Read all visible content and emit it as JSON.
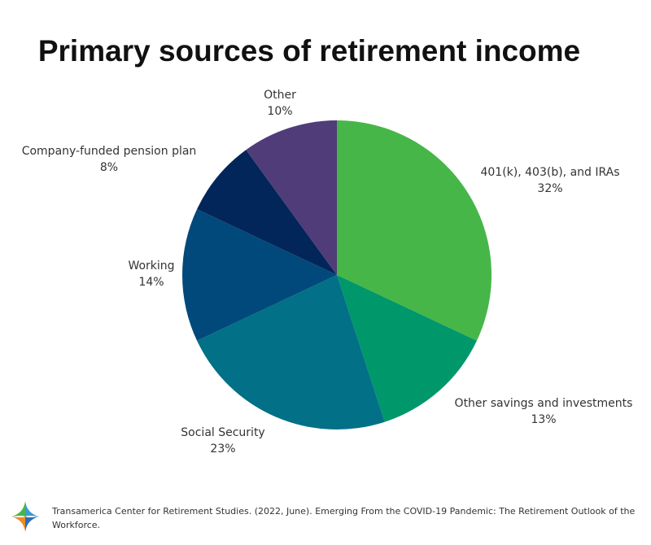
{
  "chart_data": {
    "type": "pie",
    "title": "Primary sources of retirement income",
    "slices": [
      {
        "label": "401(k), 403(b), and IRAs",
        "value": 32,
        "value_text": "32%",
        "color": "#47b648"
      },
      {
        "label": "Other savings and investments",
        "value": 13,
        "value_text": "13%",
        "color": "#00976b"
      },
      {
        "label": "Social Security",
        "value": 23,
        "value_text": "23%",
        "color": "#027087"
      },
      {
        "label": "Working",
        "value": 14,
        "value_text": "14%",
        "color": "#01497a"
      },
      {
        "label": "Company-funded pension plan",
        "value": 8,
        "value_text": "8%",
        "color": "#03265a"
      },
      {
        "label": "Other",
        "value": 10,
        "value_text": "10%",
        "color": "#4f3c79"
      }
    ],
    "start_angle": "12 o'clock",
    "direction": "clockwise",
    "legend": "none"
  },
  "footer": {
    "citation": "Transamerica Center for Retirement Studies. (2022, June). Emerging From the COVID-19 Pandemic: The Retirement Outlook of the Workforce.",
    "logo_icon": "transamerica-star-icon",
    "logo_colors": [
      "#3a9bd5",
      "#47b648",
      "#f08a24",
      "#2c6fb6"
    ]
  }
}
